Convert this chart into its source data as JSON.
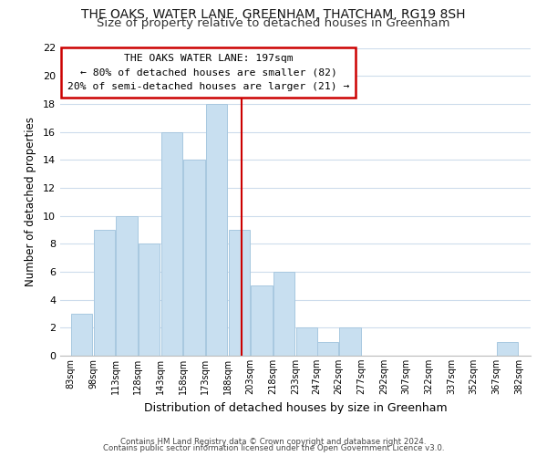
{
  "title": "THE OAKS, WATER LANE, GREENHAM, THATCHAM, RG19 8SH",
  "subtitle": "Size of property relative to detached houses in Greenham",
  "xlabel": "Distribution of detached houses by size in Greenham",
  "ylabel": "Number of detached properties",
  "footer_line1": "Contains HM Land Registry data © Crown copyright and database right 2024.",
  "footer_line2": "Contains public sector information licensed under the Open Government Licence v3.0.",
  "annotation_title": "THE OAKS WATER LANE: 197sqm",
  "annotation_line2": "← 80% of detached houses are smaller (82)",
  "annotation_line3": "20% of semi-detached houses are larger (21) →",
  "bar_color": "#c8dff0",
  "bar_edge_color": "#a8c8e0",
  "vline_color": "#cc0000",
  "vline_x": 197,
  "bins_left_edges": [
    83,
    98,
    113,
    128,
    143,
    158,
    173,
    188,
    203,
    218,
    233,
    247,
    262,
    277,
    292,
    307,
    322,
    337,
    352,
    367
  ],
  "bin_width": 15,
  "counts": [
    3,
    9,
    10,
    8,
    16,
    14,
    18,
    9,
    5,
    6,
    2,
    1,
    2,
    0,
    0,
    0,
    0,
    0,
    0,
    1
  ],
  "xtick_labels": [
    "83sqm",
    "98sqm",
    "113sqm",
    "128sqm",
    "143sqm",
    "158sqm",
    "173sqm",
    "188sqm",
    "203sqm",
    "218sqm",
    "233sqm",
    "247sqm",
    "262sqm",
    "277sqm",
    "292sqm",
    "307sqm",
    "322sqm",
    "337sqm",
    "352sqm",
    "367sqm",
    "382sqm"
  ],
  "xtick_positions": [
    83,
    98,
    113,
    128,
    143,
    158,
    173,
    188,
    203,
    218,
    233,
    247,
    262,
    277,
    292,
    307,
    322,
    337,
    352,
    367,
    382
  ],
  "ylim": [
    0,
    22
  ],
  "yticks": [
    0,
    2,
    4,
    6,
    8,
    10,
    12,
    14,
    16,
    18,
    20,
    22
  ],
  "grid_color": "#cddcec",
  "background_color": "#ffffff",
  "title_fontsize": 10,
  "subtitle_fontsize": 9.5,
  "annotation_box_color": "#ffffff",
  "annotation_box_edge": "#cc0000"
}
